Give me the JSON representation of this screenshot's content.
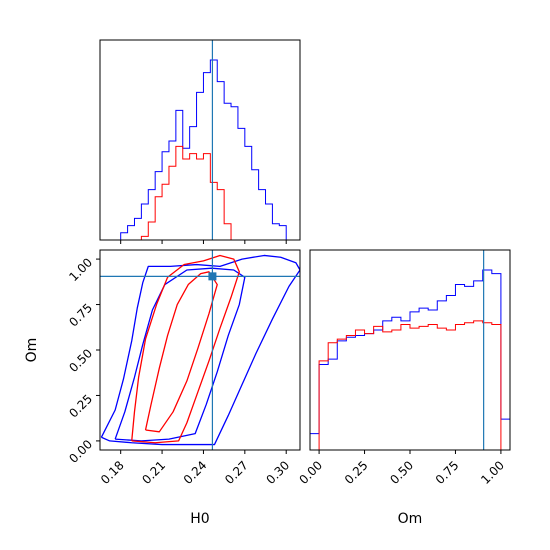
{
  "chart_data": {
    "type": "corner",
    "parameters": [
      "H0",
      "Om"
    ],
    "truth": {
      "H0": 0.2465,
      "Om": 0.905
    },
    "colors": {
      "blue": "#0000ff",
      "red": "#ff0000",
      "truth": "#1f77b4"
    },
    "panels": [
      {
        "id": "hist_H0",
        "type": "histogram",
        "param": "H0",
        "xlim": [
          0.165,
          0.31
        ],
        "bins": [
          0.175,
          0.18,
          0.185,
          0.19,
          0.195,
          0.2,
          0.205,
          0.21,
          0.215,
          0.22,
          0.225,
          0.23,
          0.235,
          0.24,
          0.245,
          0.25,
          0.255,
          0.26,
          0.265,
          0.27,
          0.275,
          0.28,
          0.285,
          0.29,
          0.295,
          0.3,
          0.305,
          0.31
        ],
        "series": [
          {
            "name": "blue",
            "values": [
              0.0,
              0.04,
              0.08,
              0.12,
              0.2,
              0.28,
              0.38,
              0.49,
              0.55,
              0.72,
              0.51,
              0.63,
              0.82,
              0.93,
              1.0,
              0.88,
              0.76,
              0.74,
              0.62,
              0.52,
              0.39,
              0.28,
              0.2,
              0.09,
              0.08,
              0.0,
              0.0
            ]
          },
          {
            "name": "red",
            "values": [
              0.0,
              0.0,
              0.0,
              0.0,
              0.02,
              0.1,
              0.24,
              0.31,
              0.41,
              0.52,
              0.45,
              0.48,
              0.45,
              0.48,
              0.32,
              0.28,
              0.09,
              0.0,
              0.0,
              0.0,
              0.0,
              0.0,
              0.0,
              0.0,
              0.0,
              0.0,
              0.0
            ]
          }
        ]
      },
      {
        "id": "hist_Om",
        "type": "histogram",
        "param": "Om",
        "xlim": [
          -0.05,
          1.05
        ],
        "bins": [
          -0.05,
          0.0,
          0.05,
          0.1,
          0.15,
          0.2,
          0.25,
          0.3,
          0.35,
          0.4,
          0.45,
          0.5,
          0.55,
          0.6,
          0.65,
          0.7,
          0.75,
          0.8,
          0.85,
          0.9,
          0.95,
          1.0,
          1.05
        ],
        "series": [
          {
            "name": "blue",
            "values": [
              0.09,
              0.47,
              0.5,
              0.6,
              0.62,
              0.63,
              0.64,
              0.66,
              0.71,
              0.73,
              0.71,
              0.76,
              0.78,
              0.77,
              0.82,
              0.85,
              0.91,
              0.9,
              0.93,
              0.99,
              0.97,
              0.17
            ]
          },
          {
            "name": "red",
            "values": [
              0.0,
              0.49,
              0.59,
              0.61,
              0.63,
              0.66,
              0.64,
              0.68,
              0.65,
              0.66,
              0.69,
              0.67,
              0.68,
              0.69,
              0.67,
              0.66,
              0.69,
              0.7,
              0.71,
              0.7,
              0.69,
              0.0
            ]
          }
        ]
      },
      {
        "id": "joint",
        "type": "contour",
        "xparam": "H0",
        "yparam": "Om",
        "xlim": [
          0.165,
          0.31
        ],
        "ylim": [
          -0.05,
          1.05
        ],
        "contours": [
          {
            "series": "blue",
            "level": "outer",
            "points": [
              [
                0.166,
                0.02
              ],
              [
                0.176,
                0.17
              ],
              [
                0.182,
                0.34
              ],
              [
                0.188,
                0.55
              ],
              [
                0.192,
                0.73
              ],
              [
                0.196,
                0.87
              ],
              [
                0.2,
                0.96
              ],
              [
                0.216,
                0.96
              ],
              [
                0.235,
                0.97
              ],
              [
                0.252,
                0.96
              ],
              [
                0.268,
                1.0
              ],
              [
                0.284,
                1.02
              ],
              [
                0.296,
                1.01
              ],
              [
                0.307,
                0.98
              ],
              [
                0.31,
                0.94
              ],
              [
                0.302,
                0.85
              ],
              [
                0.29,
                0.67
              ],
              [
                0.278,
                0.48
              ],
              [
                0.268,
                0.31
              ],
              [
                0.258,
                0.14
              ],
              [
                0.248,
                -0.02
              ],
              [
                0.228,
                -0.02
              ],
              [
                0.21,
                -0.02
              ],
              [
                0.188,
                -0.01
              ],
              [
                0.172,
                0.0
              ],
              [
                0.166,
                0.02
              ]
            ]
          },
          {
            "series": "blue",
            "level": "inner",
            "points": [
              [
                0.176,
                0.01
              ],
              [
                0.183,
                0.16
              ],
              [
                0.19,
                0.35
              ],
              [
                0.196,
                0.53
              ],
              [
                0.203,
                0.72
              ],
              [
                0.212,
                0.86
              ],
              [
                0.228,
                0.94
              ],
              [
                0.246,
                0.95
              ],
              [
                0.262,
                0.94
              ],
              [
                0.27,
                0.9
              ],
              [
                0.266,
                0.75
              ],
              [
                0.258,
                0.58
              ],
              [
                0.25,
                0.38
              ],
              [
                0.242,
                0.2
              ],
              [
                0.234,
                0.04
              ],
              [
                0.215,
                0.01
              ],
              [
                0.195,
                0.0
              ],
              [
                0.176,
                0.01
              ]
            ]
          },
          {
            "series": "red",
            "level": "outer",
            "points": [
              [
                0.188,
                0.0
              ],
              [
                0.19,
                0.16
              ],
              [
                0.193,
                0.35
              ],
              [
                0.198,
                0.56
              ],
              [
                0.206,
                0.75
              ],
              [
                0.214,
                0.9
              ],
              [
                0.226,
                0.97
              ],
              [
                0.24,
                0.99
              ],
              [
                0.252,
                1.02
              ],
              [
                0.262,
                1.0
              ],
              [
                0.266,
                0.93
              ],
              [
                0.26,
                0.79
              ],
              [
                0.252,
                0.62
              ],
              [
                0.244,
                0.44
              ],
              [
                0.236,
                0.27
              ],
              [
                0.228,
                0.1
              ],
              [
                0.222,
                0.0
              ],
              [
                0.205,
                -0.01
              ],
              [
                0.188,
                0.0
              ]
            ]
          },
          {
            "series": "red",
            "level": "inner",
            "points": [
              [
                0.198,
                0.06
              ],
              [
                0.202,
                0.2
              ],
              [
                0.208,
                0.4
              ],
              [
                0.214,
                0.58
              ],
              [
                0.221,
                0.75
              ],
              [
                0.229,
                0.86
              ],
              [
                0.238,
                0.92
              ],
              [
                0.244,
                0.93
              ],
              [
                0.25,
                0.86
              ],
              [
                0.244,
                0.7
              ],
              [
                0.236,
                0.51
              ],
              [
                0.228,
                0.33
              ],
              [
                0.218,
                0.16
              ],
              [
                0.208,
                0.05
              ],
              [
                0.198,
                0.06
              ]
            ]
          }
        ]
      }
    ],
    "axes": {
      "H0": {
        "label": "H0",
        "ticks": [
          0.18,
          0.21,
          0.24,
          0.27,
          0.3
        ],
        "tick_labels": [
          "0.18",
          "0.21",
          "0.24",
          "0.27",
          "0.30"
        ]
      },
      "Om": {
        "label": "Om",
        "ticks": [
          0.0,
          0.25,
          0.5,
          0.75,
          1.0
        ],
        "tick_labels": [
          "0.00",
          "0.25",
          "0.50",
          "0.75",
          "1.00"
        ]
      }
    }
  }
}
